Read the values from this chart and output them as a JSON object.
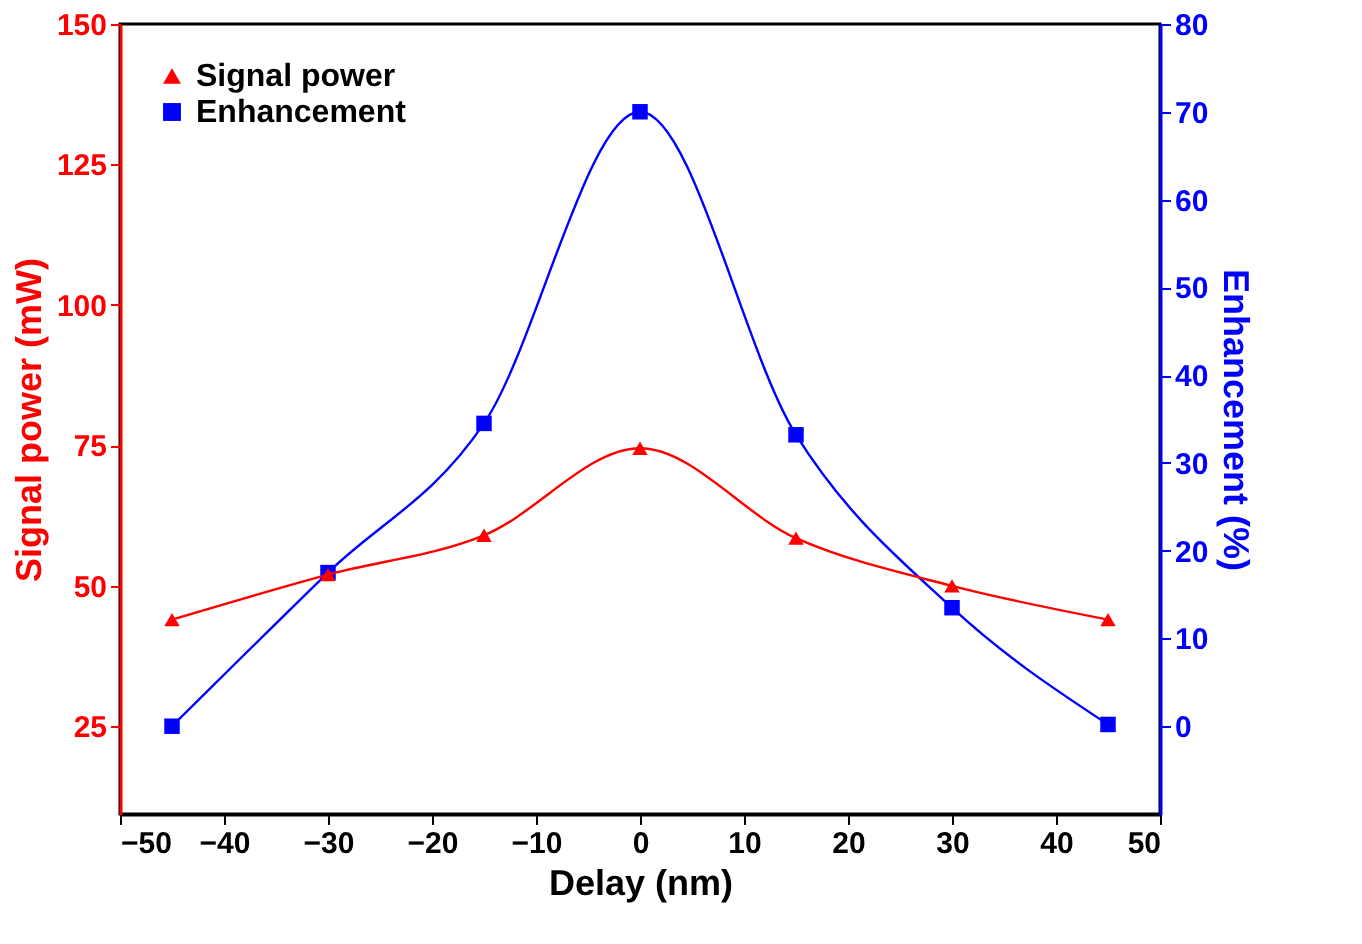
{
  "chart_data": {
    "type": "line",
    "xlabel": "Delay (nm)",
    "ylabel": "Signal power (mW)",
    "y2label": "Enhancement (%)",
    "x": [
      -45,
      -30,
      -15,
      0,
      15,
      30,
      45
    ],
    "series": [
      {
        "name": "Signal power",
        "color": "#ff0000",
        "marker": "triangle",
        "values": [
          44,
          52,
          59,
          74.5,
          58.5,
          50,
          44
        ]
      },
      {
        "name": "Enhancement",
        "color": "#0000ff",
        "marker": "square",
        "axis": "y2",
        "values": [
          0,
          17.5,
          34.5,
          70,
          33.2,
          13.5,
          0.2
        ]
      }
    ],
    "xlim": [
      -50,
      50
    ],
    "xticks": [
      -50,
      -40,
      -30,
      -20,
      -10,
      0,
      10,
      20,
      30,
      40,
      50
    ],
    "ylim": [
      9.4,
      150
    ],
    "yticks": [
      25,
      50,
      75,
      100,
      125,
      150
    ],
    "y2lim": [
      -10,
      80
    ],
    "y2ticks": [
      0,
      10,
      20,
      30,
      40,
      50,
      60,
      70,
      80
    ],
    "grid": false,
    "legend": "top left"
  }
}
